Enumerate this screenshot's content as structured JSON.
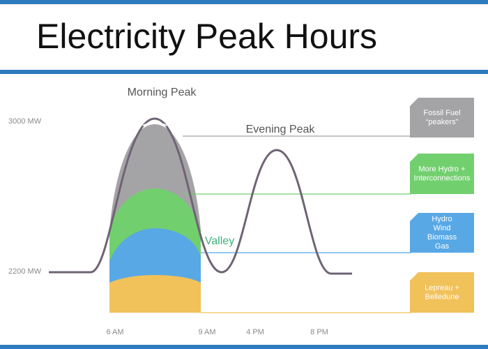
{
  "header": {
    "title": "Electricity Peak Hours"
  },
  "annotations": {
    "morning_peak": "Morning Peak",
    "evening_peak": "Evening Peak",
    "valley": "Valley"
  },
  "y_labels": [
    "3000 MW",
    "2200 MW"
  ],
  "x_labels": [
    "6 AM",
    "9 AM",
    "4 PM",
    "8 PM"
  ],
  "sources": [
    {
      "lines": [
        "Fossil Fuel",
        "“peakers”"
      ]
    },
    {
      "lines": [
        "More Hydro +",
        "Interconnections"
      ]
    },
    {
      "lines": [
        "Hydro",
        "Wind",
        "Biomass",
        "Gas"
      ]
    },
    {
      "lines": [
        "Lepreau +",
        "Belledune"
      ]
    }
  ]
}
